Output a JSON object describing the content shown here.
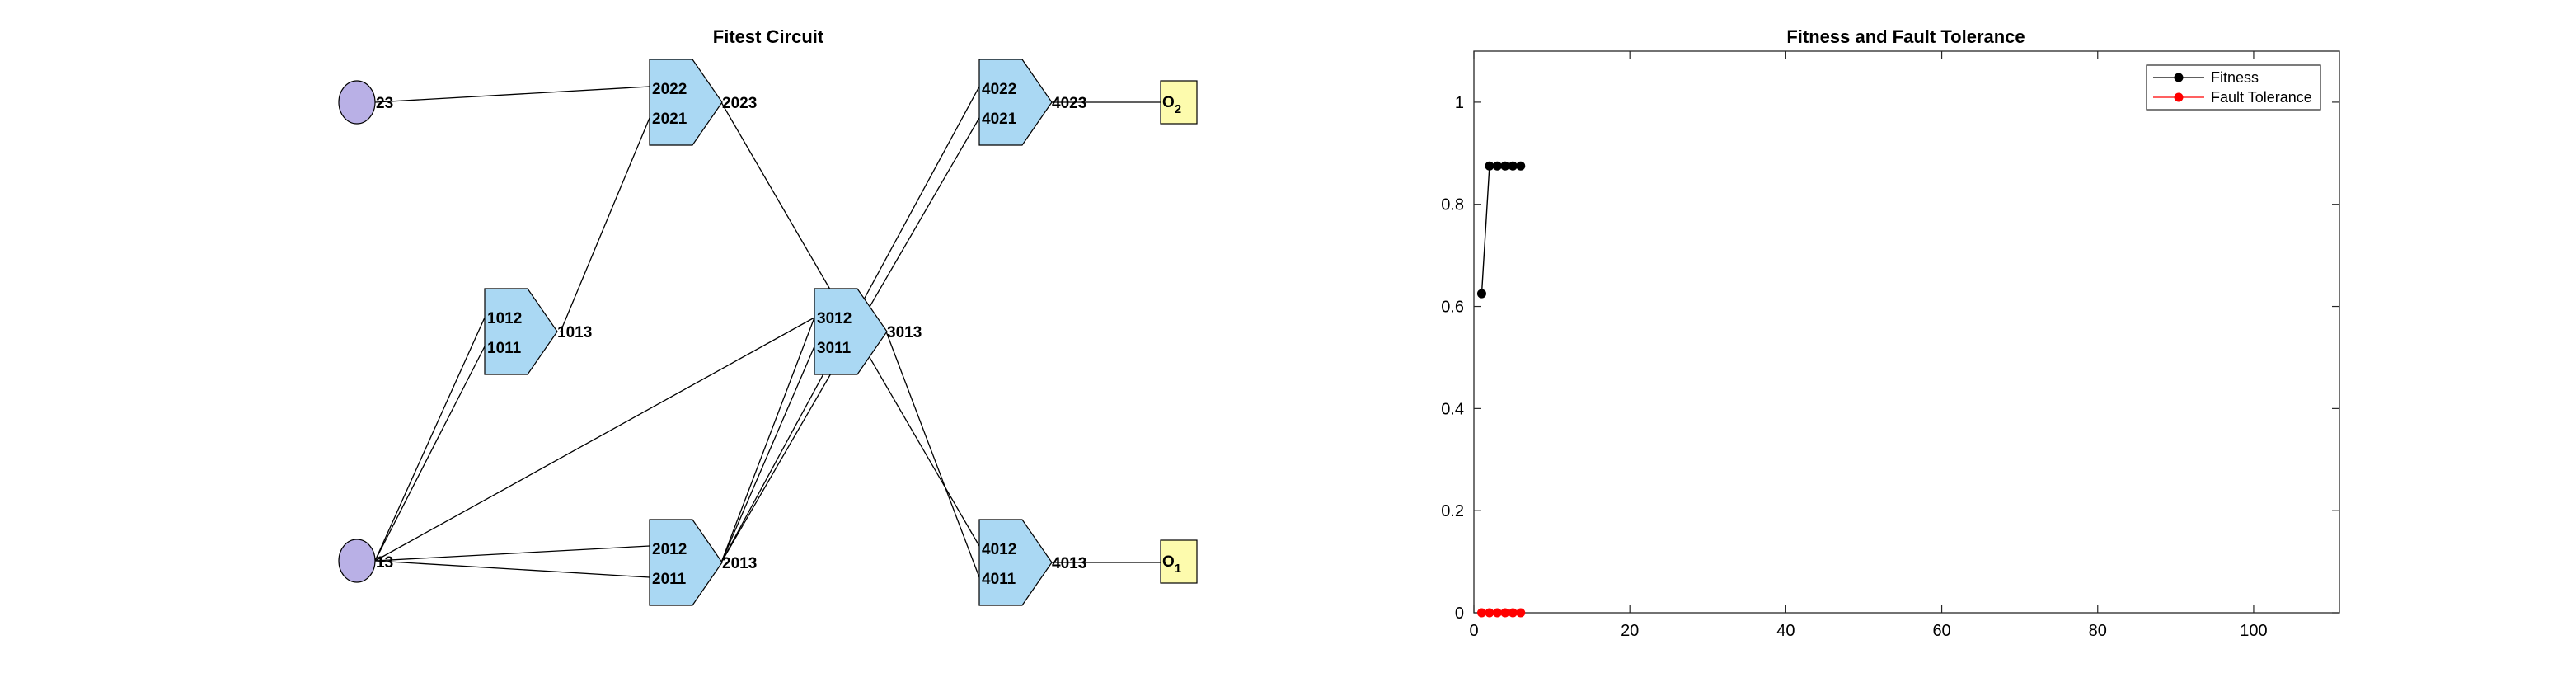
{
  "circuit": {
    "title": "Fitest Circuit",
    "inputs": [
      {
        "id": "in23",
        "label": "23"
      },
      {
        "id": "in13",
        "label": "13"
      }
    ],
    "gates": [
      {
        "id": "g1",
        "in_top": "1012",
        "in_bottom": "1011",
        "out": "1013"
      },
      {
        "id": "g2a",
        "in_top": "2022",
        "in_bottom": "2021",
        "out": "2023"
      },
      {
        "id": "g2b",
        "in_top": "2012",
        "in_bottom": "2011",
        "out": "2013"
      },
      {
        "id": "g3",
        "in_top": "3012",
        "in_bottom": "3011",
        "out": "3013"
      },
      {
        "id": "g4a",
        "in_top": "4022",
        "in_bottom": "4021",
        "out": "4023"
      },
      {
        "id": "g4b",
        "in_top": "4012",
        "in_bottom": "4011",
        "out": "4013"
      }
    ],
    "outputs": [
      {
        "id": "o2",
        "label": "O",
        "subscript": "2"
      },
      {
        "id": "o1",
        "label": "O",
        "subscript": "1"
      }
    ],
    "colors": {
      "input": "#b9b0e6",
      "gate": "#aad8f3",
      "output": "#fdfbad",
      "wire": "#000000"
    }
  },
  "chart_data": {
    "type": "line",
    "title": "Fitness and Fault Tolerance",
    "xlabel": "",
    "ylabel": "",
    "xlim": [
      0,
      111
    ],
    "ylim": [
      0,
      1.1
    ],
    "xticks": [
      0,
      20,
      40,
      60,
      80,
      100
    ],
    "yticks": [
      0,
      0.2,
      0.4,
      0.6,
      0.8,
      1
    ],
    "grid": false,
    "legend_position": "top-right",
    "series": [
      {
        "name": "Fitness",
        "color": "#000000",
        "x": [
          1,
          2,
          3,
          4,
          5,
          6
        ],
        "values": [
          0.625,
          0.875,
          0.875,
          0.875,
          0.875,
          0.875
        ]
      },
      {
        "name": "Fault Tolerance",
        "color": "#ff0000",
        "x": [
          1,
          2,
          3,
          4,
          5,
          6
        ],
        "values": [
          0,
          0,
          0,
          0,
          0,
          0
        ]
      }
    ]
  }
}
